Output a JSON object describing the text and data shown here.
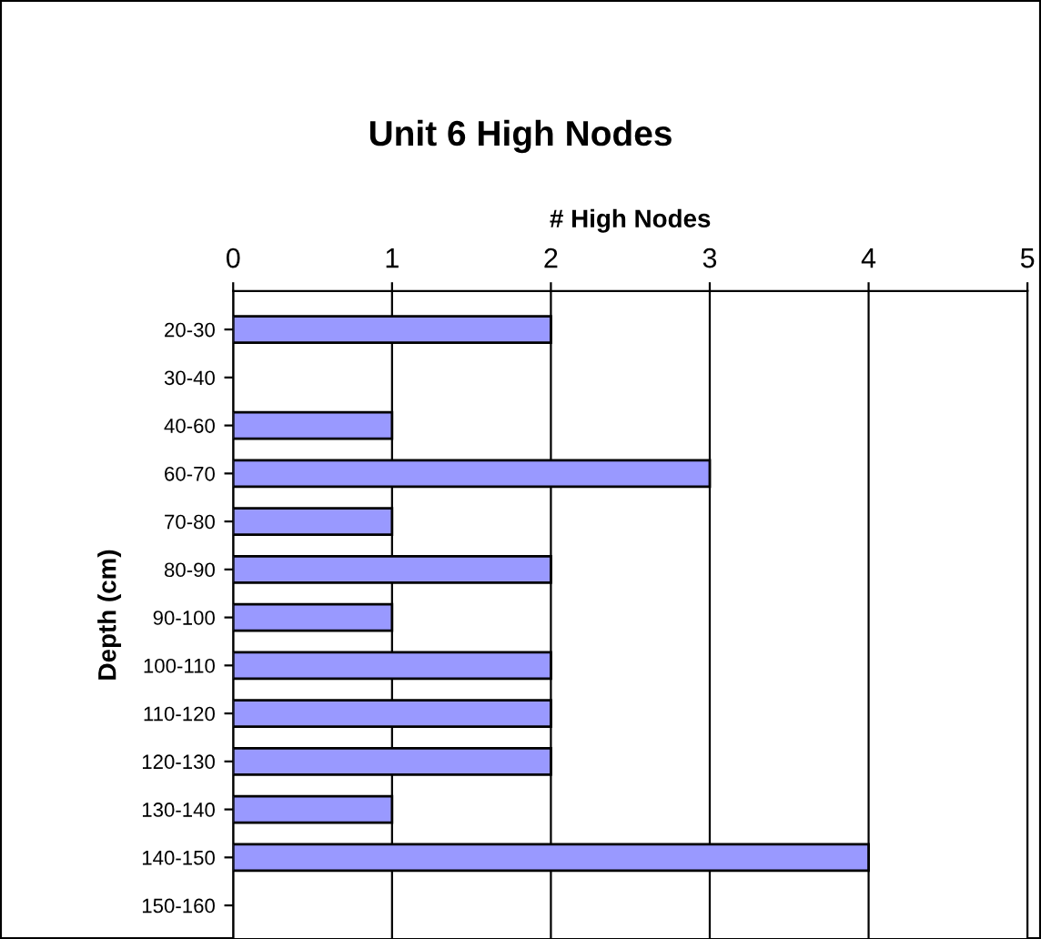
{
  "chart_data": {
    "type": "bar",
    "orientation": "horizontal",
    "title": "Unit 6 High Nodes",
    "xlabel": "# High Nodes",
    "ylabel": "Depth (cm)",
    "categories": [
      "20-30",
      "30-40",
      "40-60",
      "60-70",
      "70-80",
      "80-90",
      "90-100",
      "100-110",
      "110-120",
      "120-130",
      "130-140",
      "140-150",
      "150-160"
    ],
    "values": [
      2,
      0,
      1,
      3,
      1,
      2,
      1,
      2,
      2,
      2,
      1,
      4,
      0
    ],
    "color": "#9999ff",
    "xlim": [
      0,
      5
    ],
    "xticks": [
      0,
      1,
      2,
      3,
      4,
      5
    ],
    "grid": "x",
    "legend": false
  }
}
